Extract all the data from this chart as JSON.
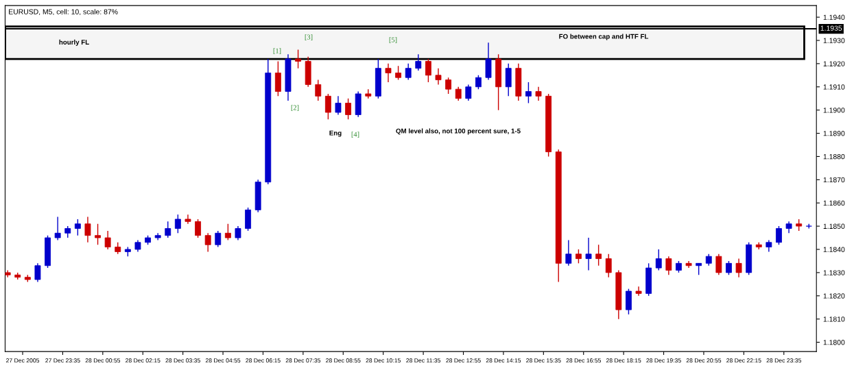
{
  "chart_data": {
    "type": "candlestick",
    "title": "EURUSD, M5, cell: 10, scale: 87%",
    "x": [
      "2005-12-27T21:45",
      "2005-12-27T22:05",
      "2005-12-27T22:25",
      "2005-12-27T22:45",
      "2005-12-27T23:05",
      "2005-12-27T23:25",
      "2005-12-27T23:45",
      "2005-12-28T00:05",
      "2005-12-28T00:25",
      "2005-12-28T00:45",
      "2005-12-28T01:05",
      "2005-12-28T01:25",
      "2005-12-28T01:45",
      "2005-12-28T02:05",
      "2005-12-28T02:25",
      "2005-12-28T02:45",
      "2005-12-28T03:05",
      "2005-12-28T03:25",
      "2005-12-28T03:45",
      "2005-12-28T04:05",
      "2005-12-28T04:25",
      "2005-12-28T04:45",
      "2005-12-28T05:05",
      "2005-12-28T05:25",
      "2005-12-28T05:45",
      "2005-12-28T06:05",
      "2005-12-28T06:25",
      "2005-12-28T06:45",
      "2005-12-28T07:05",
      "2005-12-28T07:25",
      "2005-12-28T07:45",
      "2005-12-28T08:05",
      "2005-12-28T08:25",
      "2005-12-28T08:45",
      "2005-12-28T09:05",
      "2005-12-28T09:25",
      "2005-12-28T09:45",
      "2005-12-28T10:05",
      "2005-12-28T10:25",
      "2005-12-28T10:45",
      "2005-12-28T11:05",
      "2005-12-28T11:25",
      "2005-12-28T11:45",
      "2005-12-28T12:05",
      "2005-12-28T12:25",
      "2005-12-28T12:45",
      "2005-12-28T13:05",
      "2005-12-28T13:25",
      "2005-12-28T13:45",
      "2005-12-28T14:05",
      "2005-12-28T14:25",
      "2005-12-28T14:45",
      "2005-12-28T15:05",
      "2005-12-28T15:25",
      "2005-12-28T15:45",
      "2005-12-28T16:05",
      "2005-12-28T16:25",
      "2005-12-28T16:45",
      "2005-12-28T17:05",
      "2005-12-28T17:25",
      "2005-12-28T17:45",
      "2005-12-28T18:05",
      "2005-12-28T18:25",
      "2005-12-28T18:45",
      "2005-12-28T19:05",
      "2005-12-28T19:25",
      "2005-12-28T19:45",
      "2005-12-28T20:05",
      "2005-12-28T20:25",
      "2005-12-28T20:45",
      "2005-12-28T21:05",
      "2005-12-28T21:25",
      "2005-12-28T21:45",
      "2005-12-28T22:05",
      "2005-12-28T22:25",
      "2005-12-28T22:45",
      "2005-12-28T23:05",
      "2005-12-28T23:25",
      "2005-12-28T23:45",
      "2005-12-29T00:05",
      "2005-12-29T00:25"
    ],
    "ohlc": [
      [
        1.183,
        1.1831,
        1.1828,
        1.1829
      ],
      [
        1.1829,
        1.183,
        1.1827,
        1.1828
      ],
      [
        1.1828,
        1.1829,
        1.1826,
        1.1827
      ],
      [
        1.1827,
        1.1834,
        1.1826,
        1.1833
      ],
      [
        1.1833,
        1.1846,
        1.1832,
        1.1845
      ],
      [
        1.1845,
        1.1854,
        1.1844,
        1.1847
      ],
      [
        1.1847,
        1.185,
        1.1845,
        1.1849
      ],
      [
        1.1849,
        1.1853,
        1.1846,
        1.1851
      ],
      [
        1.1851,
        1.1854,
        1.1843,
        1.1846
      ],
      [
        1.1846,
        1.1851,
        1.1842,
        1.1845
      ],
      [
        1.1845,
        1.1848,
        1.184,
        1.1841
      ],
      [
        1.1841,
        1.1843,
        1.1838,
        1.1839
      ],
      [
        1.1839,
        1.1841,
        1.1837,
        1.184
      ],
      [
        1.184,
        1.1844,
        1.1839,
        1.1843
      ],
      [
        1.1843,
        1.1846,
        1.1842,
        1.1845
      ],
      [
        1.1845,
        1.1847,
        1.1844,
        1.1846
      ],
      [
        1.1846,
        1.1852,
        1.1845,
        1.1849
      ],
      [
        1.1849,
        1.1855,
        1.1847,
        1.1853
      ],
      [
        1.1853,
        1.1855,
        1.1851,
        1.1852
      ],
      [
        1.1852,
        1.1853,
        1.1845,
        1.1846
      ],
      [
        1.1846,
        1.1847,
        1.1839,
        1.1842
      ],
      [
        1.1842,
        1.1848,
        1.1841,
        1.1847
      ],
      [
        1.1847,
        1.1851,
        1.1844,
        1.1845
      ],
      [
        1.1845,
        1.185,
        1.1844,
        1.1849
      ],
      [
        1.1849,
        1.1858,
        1.1848,
        1.1857
      ],
      [
        1.1857,
        1.187,
        1.1856,
        1.1869
      ],
      [
        1.1869,
        1.1922,
        1.1868,
        1.1916
      ],
      [
        1.1916,
        1.1921,
        1.1906,
        1.1908
      ],
      [
        1.1908,
        1.1924,
        1.1904,
        1.1922
      ],
      [
        1.1922,
        1.1926,
        1.1918,
        1.1921
      ],
      [
        1.1921,
        1.1923,
        1.191,
        1.1911
      ],
      [
        1.1911,
        1.1913,
        1.1904,
        1.1906
      ],
      [
        1.1906,
        1.1907,
        1.1896,
        1.1899
      ],
      [
        1.1899,
        1.1906,
        1.1898,
        1.1903
      ],
      [
        1.1903,
        1.1905,
        1.1896,
        1.1898
      ],
      [
        1.1898,
        1.1908,
        1.1897,
        1.1907
      ],
      [
        1.1907,
        1.1909,
        1.1905,
        1.1906
      ],
      [
        1.1906,
        1.1922,
        1.1905,
        1.1918
      ],
      [
        1.1918,
        1.192,
        1.1912,
        1.1916
      ],
      [
        1.1916,
        1.1919,
        1.1913,
        1.1914
      ],
      [
        1.1914,
        1.192,
        1.1913,
        1.1918
      ],
      [
        1.1918,
        1.1924,
        1.1917,
        1.1921
      ],
      [
        1.1921,
        1.1922,
        1.1912,
        1.1915
      ],
      [
        1.1915,
        1.1918,
        1.1911,
        1.1913
      ],
      [
        1.1913,
        1.1914,
        1.1907,
        1.1909
      ],
      [
        1.1909,
        1.191,
        1.1904,
        1.1905
      ],
      [
        1.1905,
        1.1911,
        1.1904,
        1.191
      ],
      [
        1.191,
        1.1915,
        1.1909,
        1.1914
      ],
      [
        1.1914,
        1.1929,
        1.1913,
        1.1922
      ],
      [
        1.1922,
        1.1924,
        1.19,
        1.191
      ],
      [
        1.191,
        1.192,
        1.1906,
        1.1918
      ],
      [
        1.1918,
        1.192,
        1.1904,
        1.1906
      ],
      [
        1.1906,
        1.1912,
        1.1903,
        1.1908
      ],
      [
        1.1908,
        1.191,
        1.1904,
        1.1906
      ],
      [
        1.1906,
        1.1907,
        1.188,
        1.1882
      ],
      [
        1.1882,
        1.1883,
        1.1826,
        1.1834
      ],
      [
        1.1834,
        1.1844,
        1.1833,
        1.1838
      ],
      [
        1.1838,
        1.184,
        1.1834,
        1.1836
      ],
      [
        1.1836,
        1.1845,
        1.1831,
        1.1838
      ],
      [
        1.1838,
        1.1842,
        1.1833,
        1.1836
      ],
      [
        1.1836,
        1.1838,
        1.1828,
        1.183
      ],
      [
        1.183,
        1.1831,
        1.181,
        1.1814
      ],
      [
        1.1814,
        1.1823,
        1.1812,
        1.1822
      ],
      [
        1.1822,
        1.1824,
        1.182,
        1.1821
      ],
      [
        1.1821,
        1.1834,
        1.182,
        1.1832
      ],
      [
        1.1832,
        1.184,
        1.1831,
        1.1836
      ],
      [
        1.1836,
        1.1837,
        1.1829,
        1.1831
      ],
      [
        1.1831,
        1.1835,
        1.183,
        1.1834
      ],
      [
        1.1834,
        1.1835,
        1.1832,
        1.1833
      ],
      [
        1.1833,
        1.1834,
        1.1829,
        1.1834
      ],
      [
        1.1834,
        1.1838,
        1.1833,
        1.1837
      ],
      [
        1.1837,
        1.1838,
        1.1829,
        1.183
      ],
      [
        1.183,
        1.1835,
        1.1829,
        1.1834
      ],
      [
        1.1834,
        1.1836,
        1.1828,
        1.183
      ],
      [
        1.183,
        1.1843,
        1.1829,
        1.1842
      ],
      [
        1.1842,
        1.1843,
        1.184,
        1.1841
      ],
      [
        1.1841,
        1.1844,
        1.1839,
        1.1843
      ],
      [
        1.1843,
        1.185,
        1.1842,
        1.1849
      ],
      [
        1.1849,
        1.1852,
        1.1847,
        1.1851
      ],
      [
        1.1851,
        1.1853,
        1.1848,
        1.185
      ],
      [
        1.185,
        1.1851,
        1.1849,
        1.185
      ]
    ],
    "colors": [
      "#cc0000",
      "#cc0000",
      "#cc0000",
      "#0000cc",
      "#0000cc",
      "#0000cc",
      "#0000cc",
      "#0000cc",
      "#cc0000",
      "#cc0000",
      "#cc0000",
      "#cc0000",
      "#0000cc",
      "#0000cc",
      "#0000cc",
      "#0000cc",
      "#0000cc",
      "#0000cc",
      "#cc0000",
      "#cc0000",
      "#cc0000",
      "#0000cc",
      "#cc0000",
      "#0000cc",
      "#0000cc",
      "#0000cc",
      "#0000cc",
      "#cc0000",
      "#0000cc",
      "#cc0000",
      "#cc0000",
      "#cc0000",
      "#cc0000",
      "#0000cc",
      "#cc0000",
      "#0000cc",
      "#cc0000",
      "#0000cc",
      "#cc0000",
      "#cc0000",
      "#0000cc",
      "#0000cc",
      "#cc0000",
      "#cc0000",
      "#cc0000",
      "#cc0000",
      "#0000cc",
      "#0000cc",
      "#0000cc",
      "#cc0000",
      "#0000cc",
      "#cc0000",
      "#0000cc",
      "#cc0000",
      "#cc0000",
      "#cc0000",
      "#0000cc",
      "#cc0000",
      "#0000cc",
      "#cc0000",
      "#cc0000",
      "#cc0000",
      "#0000cc",
      "#cc0000",
      "#0000cc",
      "#0000cc",
      "#cc0000",
      "#0000cc",
      "#cc0000",
      "#0000cc",
      "#0000cc",
      "#cc0000",
      "#0000cc",
      "#cc0000",
      "#0000cc",
      "#cc0000",
      "#0000cc",
      "#0000cc",
      "#0000cc",
      "#cc0000",
      "#0000cc"
    ],
    "xlim": [
      "2005-12-27T21:40",
      "2005-12-29T00:40"
    ],
    "xticks": [
      {
        "value": "2005-12-27T22:15",
        "label": "27 Dec 2005"
      },
      {
        "value": "2005-12-27T23:35",
        "label": "27 Dec 23:35"
      },
      {
        "value": "2005-12-28T00:55",
        "label": "28 Dec 00:55"
      },
      {
        "value": "2005-12-28T02:15",
        "label": "28 Dec 02:15"
      },
      {
        "value": "2005-12-28T03:35",
        "label": "28 Dec 03:35"
      },
      {
        "value": "2005-12-28T04:55",
        "label": "28 Dec 04:55"
      },
      {
        "value": "2005-12-28T06:15",
        "label": "28 Dec 06:15"
      },
      {
        "value": "2005-12-28T07:35",
        "label": "28 Dec 07:35"
      },
      {
        "value": "2005-12-28T08:55",
        "label": "28 Dec 08:55"
      },
      {
        "value": "2005-12-28T10:15",
        "label": "28 Dec 10:15"
      },
      {
        "value": "2005-12-28T11:35",
        "label": "28 Dec 11:35"
      },
      {
        "value": "2005-12-28T12:55",
        "label": "28 Dec 12:55"
      },
      {
        "value": "2005-12-28T14:15",
        "label": "28 Dec 14:15"
      },
      {
        "value": "2005-12-28T15:35",
        "label": "28 Dec 15:35"
      },
      {
        "value": "2005-12-28T16:55",
        "label": "28 Dec 16:55"
      },
      {
        "value": "2005-12-28T18:15",
        "label": "28 Dec 18:15"
      },
      {
        "value": "2005-12-28T19:35",
        "label": "28 Dec 19:35"
      },
      {
        "value": "2005-12-28T20:55",
        "label": "28 Dec 20:55"
      },
      {
        "value": "2005-12-28T22:15",
        "label": "28 Dec 22:15"
      },
      {
        "value": "2005-12-28T23:35",
        "label": "28 Dec 23:35"
      }
    ],
    "ylim": [
      1.1796,
      1.1945
    ],
    "yticks": [
      {
        "value": 1.18,
        "label": "1.1800"
      },
      {
        "value": 1.181,
        "label": "1.1810"
      },
      {
        "value": 1.182,
        "label": "1.1820"
      },
      {
        "value": 1.183,
        "label": "1.1830"
      },
      {
        "value": 1.184,
        "label": "1.1840"
      },
      {
        "value": 1.185,
        "label": "1.1850"
      },
      {
        "value": 1.186,
        "label": "1.1860"
      },
      {
        "value": 1.187,
        "label": "1.1870"
      },
      {
        "value": 1.188,
        "label": "1.1880"
      },
      {
        "value": 1.189,
        "label": "1.1890"
      },
      {
        "value": 1.19,
        "label": "1.1900"
      },
      {
        "value": 1.191,
        "label": "1.1910"
      },
      {
        "value": 1.192,
        "label": "1.1920"
      },
      {
        "value": 1.193,
        "label": "1.1930"
      },
      {
        "value": 1.194,
        "label": "1.1940"
      }
    ],
    "ref_lines": [
      {
        "axis": "y",
        "value": 1.1935,
        "label": "1.1935",
        "color": "#000000"
      }
    ],
    "bands": [
      {
        "axis": "y",
        "from": 1.1922,
        "to": 1.1936,
        "label": "hourly FL",
        "color": "#000000"
      }
    ],
    "annotations": [
      "[1]",
      "[2]",
      "[3]",
      "[4]",
      "[5]",
      "Eng",
      "QM level also, not 100 percent sure, 1-5",
      "FO between cap and HTF FL"
    ],
    "grid": false
  }
}
